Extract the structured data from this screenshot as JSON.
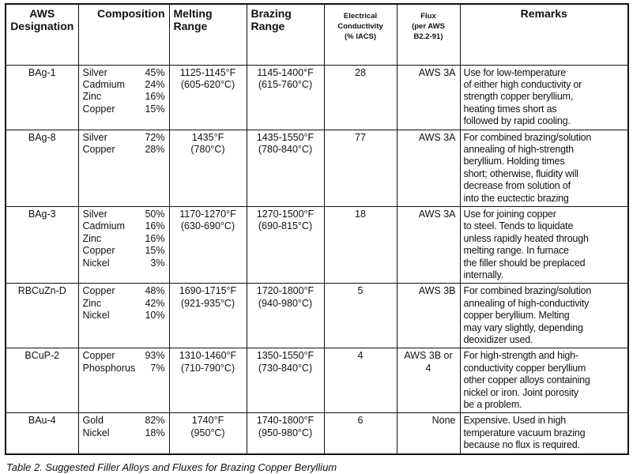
{
  "headers": {
    "designation": [
      "AWS",
      "Designation"
    ],
    "composition": "Composition",
    "melting": [
      "Melting",
      "Range"
    ],
    "brazing": [
      "Brazing",
      "Range"
    ],
    "conductivity": [
      "Electrical",
      "Conductivity",
      "(% IACS)"
    ],
    "flux": [
      "Flux",
      "(per AWS",
      "B2.2-91)"
    ],
    "remarks": "Remarks"
  },
  "rows": [
    {
      "designation": "BAg-1",
      "composition": [
        [
          "Silver",
          "45%"
        ],
        [
          "Cadmium",
          "24%"
        ],
        [
          "Zinc",
          "16%"
        ],
        [
          "Copper",
          "15%"
        ]
      ],
      "melting": [
        "1125-1145°F",
        "(605-620°C)"
      ],
      "brazing": [
        "1145-1400°F",
        "(615-760°C)"
      ],
      "conductivity": "28",
      "flux": [
        "AWS 3A"
      ],
      "remarks": [
        "Use for low-temperature",
        "of either high conductivity or",
        "strength copper beryllium,",
        "heating times short as",
        "followed by rapid cooling."
      ]
    },
    {
      "designation": "BAg-8",
      "composition": [
        [
          "Silver",
          "72%"
        ],
        [
          "Copper",
          "28%"
        ]
      ],
      "melting": [
        "1435°F",
        "(780°C)"
      ],
      "brazing": [
        "1435-1550°F",
        "(780-840°C)"
      ],
      "conductivity": "77",
      "flux": [
        "AWS 3A"
      ],
      "remarks": [
        "For combined brazing/solution",
        "annealing of high-strength",
        "beryllium.  Holding times",
        "short; otherwise, fluidity will",
        "decrease from solution of",
        "into the euctectic brazing"
      ]
    },
    {
      "designation": "BAg-3",
      "composition": [
        [
          "Silver",
          "50%"
        ],
        [
          "Cadmium",
          "16%"
        ],
        [
          "Zinc",
          "16%"
        ],
        [
          "Copper",
          "15%"
        ],
        [
          "Nickel",
          "3%"
        ]
      ],
      "melting": [
        "1170-1270°F",
        "(630-690°C)"
      ],
      "brazing": [
        "1270-1500°F",
        "(690-815°C)"
      ],
      "conductivity": "18",
      "flux": [
        "AWS 3A"
      ],
      "remarks": [
        "Use for joining copper",
        "to steel.  Tends to liquidate",
        "unless rapidly heated through",
        "melting range.  In furnace",
        "the filler should be preplaced",
        "internally."
      ]
    },
    {
      "designation": "RBCuZn-D",
      "composition": [
        [
          "Copper",
          "48%"
        ],
        [
          "Zinc",
          "42%"
        ],
        [
          "Nickel",
          "10%"
        ]
      ],
      "melting": [
        "1690-1715°F",
        "(921-935°C)"
      ],
      "brazing": [
        "1720-1800°F",
        "(940-980°C)"
      ],
      "conductivity": "5",
      "flux": [
        "AWS 3B"
      ],
      "remarks": [
        "For combined brazing/solution",
        "annealing of high-conductivity",
        "copper beryllium.  Melting",
        "may vary slightly, depending",
        "deoxidizer used."
      ]
    },
    {
      "designation": "BCuP-2",
      "composition": [
        [
          "Copper",
          "93%"
        ],
        [
          "Phosphorus",
          "7%"
        ]
      ],
      "melting": [
        "1310-1460°F",
        "(710-790°C)"
      ],
      "brazing": [
        "1350-1550°F",
        "(730-840°C)"
      ],
      "conductivity": "4",
      "flux": [
        "AWS 3B or",
        "4"
      ],
      "remarks": [
        "For high-strength and high-",
        "conductivity copper beryllium",
        "other copper alloys containing",
        "nickel or iron.  Joint porosity",
        "be a problem."
      ]
    },
    {
      "designation": "BAu-4",
      "composition": [
        [
          "Gold",
          "82%"
        ],
        [
          "Nickel",
          "18%"
        ]
      ],
      "melting": [
        "1740°F",
        "(950°C)"
      ],
      "brazing": [
        "1740-1800°F",
        "(950-980°C)"
      ],
      "conductivity": "6",
      "flux": [
        "None"
      ],
      "remarks": [
        "Expensive.  Used in high",
        "temperature vacuum brazing",
        "because no flux is required."
      ]
    }
  ],
  "caption": "Table 2.  Suggested Filler Alloys and Fluxes for Brazing Copper Beryllium"
}
